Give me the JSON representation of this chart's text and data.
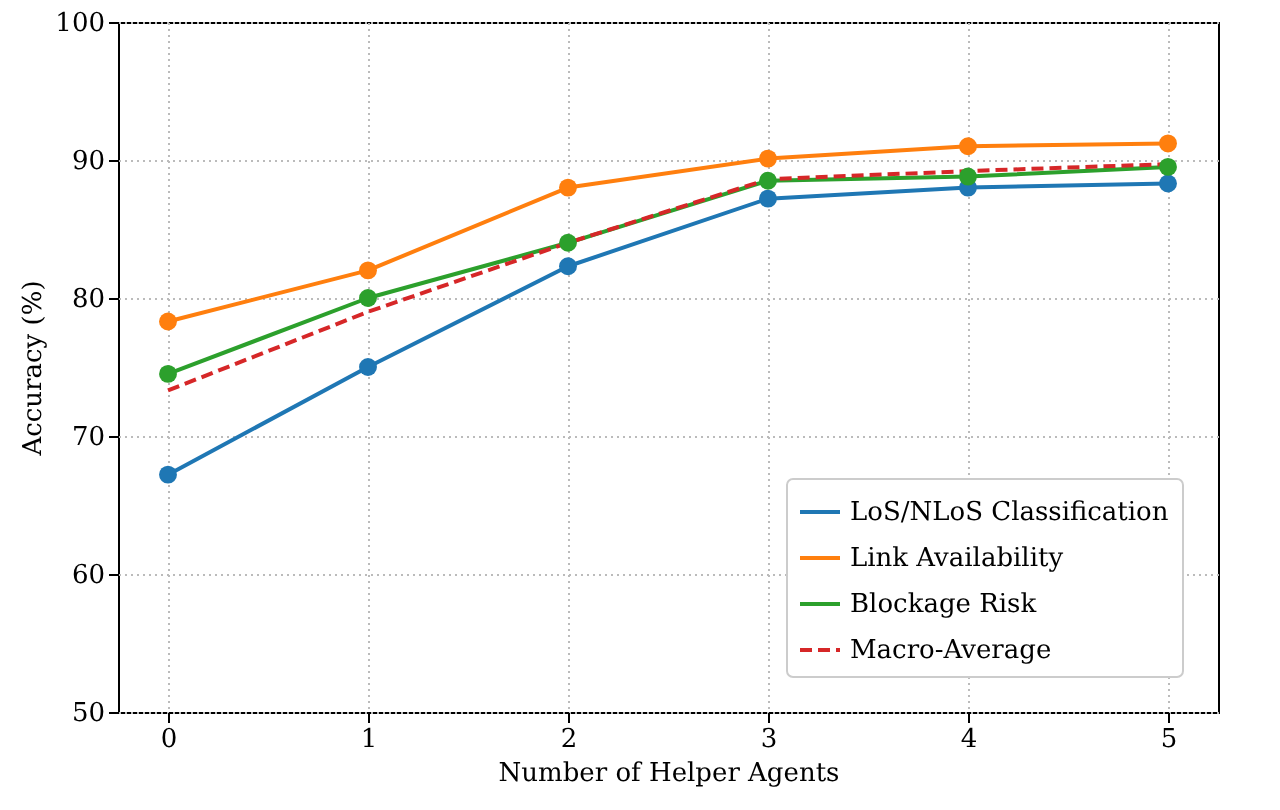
{
  "chart_data": {
    "type": "line",
    "xlabel": "Number of Helper Agents",
    "ylabel": "Accuracy (%)",
    "x": [
      0,
      1,
      2,
      3,
      4,
      5
    ],
    "series": [
      {
        "name": "LoS/NLoS Classification",
        "color": "#1f77b4",
        "marker": "circle",
        "line_style": "solid",
        "values": [
          67.2,
          75,
          82.3,
          87.2,
          88,
          88.3
        ]
      },
      {
        "name": "Link Availability",
        "color": "#ff7f0e",
        "marker": "circle",
        "line_style": "solid",
        "values": [
          78.3,
          82,
          88,
          90.1,
          91,
          91.2
        ]
      },
      {
        "name": "Blockage Risk",
        "color": "#2ca02c",
        "marker": "circle",
        "line_style": "solid",
        "values": [
          74.5,
          80,
          84,
          88.5,
          88.8,
          89.5
        ]
      },
      {
        "name": "Macro-Average",
        "color": "#d62728",
        "marker": "none",
        "line_style": "dashed",
        "values": [
          73.3,
          79,
          84,
          88.6,
          89.2,
          89.7
        ]
      }
    ],
    "xlim": [
      -0.25,
      5.25
    ],
    "xticks": [
      0,
      1,
      2,
      3,
      4,
      5
    ],
    "ylim": [
      50,
      100
    ],
    "yticks": [
      50,
      60,
      70,
      80,
      90,
      100
    ],
    "grid": true,
    "legend": "bottom right"
  }
}
